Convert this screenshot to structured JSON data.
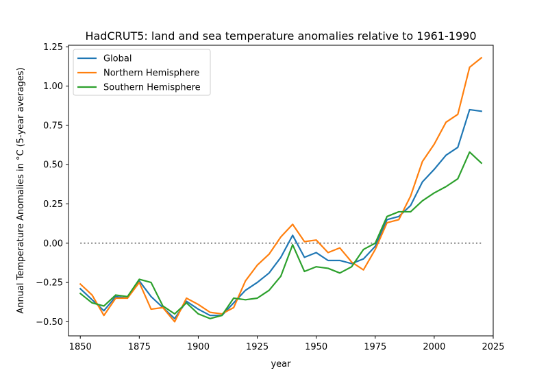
{
  "chart_data": {
    "type": "line",
    "title": "HadCRUT5: land and sea temperature anomalies relative to 1961-1990",
    "xlabel": "year",
    "ylabel": "Annual Temperature Anomalies in °C (5-year averages)",
    "xlim": [
      1845,
      2025
    ],
    "ylim": [
      -0.59,
      1.26
    ],
    "x_ticks": [
      1850,
      1875,
      1900,
      1925,
      1950,
      1975,
      2000,
      2025
    ],
    "x_tick_labels": [
      "1850",
      "1875",
      "1900",
      "1925",
      "1950",
      "1975",
      "2000",
      "2025"
    ],
    "y_ticks": [
      -0.5,
      -0.25,
      0.0,
      0.25,
      0.5,
      0.75,
      1.0,
      1.25
    ],
    "y_tick_labels": [
      "−0.50",
      "−0.25",
      "0.00",
      "0.25",
      "0.50",
      "0.75",
      "1.00",
      "1.25"
    ],
    "grid": false,
    "legend_position": "top-left",
    "reference_line": {
      "y": 0.0,
      "x_range": [
        1850,
        2020
      ],
      "style": "dotted",
      "color": "#808080"
    },
    "x": [
      1850,
      1855,
      1860,
      1865,
      1870,
      1875,
      1880,
      1885,
      1890,
      1895,
      1900,
      1905,
      1910,
      1915,
      1920,
      1925,
      1930,
      1935,
      1940,
      1945,
      1950,
      1955,
      1960,
      1965,
      1970,
      1975,
      1980,
      1985,
      1990,
      1995,
      2000,
      2005,
      2010,
      2015,
      2020
    ],
    "series": [
      {
        "name": "Global",
        "color": "#1f77b4",
        "values": [
          -0.29,
          -0.36,
          -0.43,
          -0.34,
          -0.35,
          -0.24,
          -0.34,
          -0.41,
          -0.48,
          -0.37,
          -0.42,
          -0.46,
          -0.46,
          -0.38,
          -0.3,
          -0.25,
          -0.19,
          -0.09,
          0.05,
          -0.09,
          -0.06,
          -0.11,
          -0.11,
          -0.13,
          -0.1,
          -0.02,
          0.15,
          0.17,
          0.24,
          0.39,
          0.47,
          0.56,
          0.61,
          0.85,
          0.84
        ]
      },
      {
        "name": "Northern Hemisphere",
        "color": "#ff7f0e",
        "values": [
          -0.26,
          -0.33,
          -0.46,
          -0.35,
          -0.35,
          -0.25,
          -0.42,
          -0.41,
          -0.5,
          -0.35,
          -0.39,
          -0.44,
          -0.45,
          -0.41,
          -0.24,
          -0.14,
          -0.07,
          0.04,
          0.12,
          0.01,
          0.02,
          -0.06,
          -0.03,
          -0.12,
          -0.17,
          -0.04,
          0.13,
          0.15,
          0.3,
          0.52,
          0.63,
          0.77,
          0.82,
          1.12,
          1.18
        ]
      },
      {
        "name": "Southern Hemisphere",
        "color": "#2ca02c",
        "values": [
          -0.32,
          -0.38,
          -0.4,
          -0.33,
          -0.34,
          -0.23,
          -0.25,
          -0.4,
          -0.45,
          -0.38,
          -0.45,
          -0.48,
          -0.46,
          -0.35,
          -0.36,
          -0.35,
          -0.3,
          -0.21,
          -0.01,
          -0.18,
          -0.15,
          -0.16,
          -0.19,
          -0.15,
          -0.04,
          0.0,
          0.17,
          0.2,
          0.2,
          0.27,
          0.32,
          0.36,
          0.41,
          0.58,
          0.51
        ]
      }
    ]
  }
}
